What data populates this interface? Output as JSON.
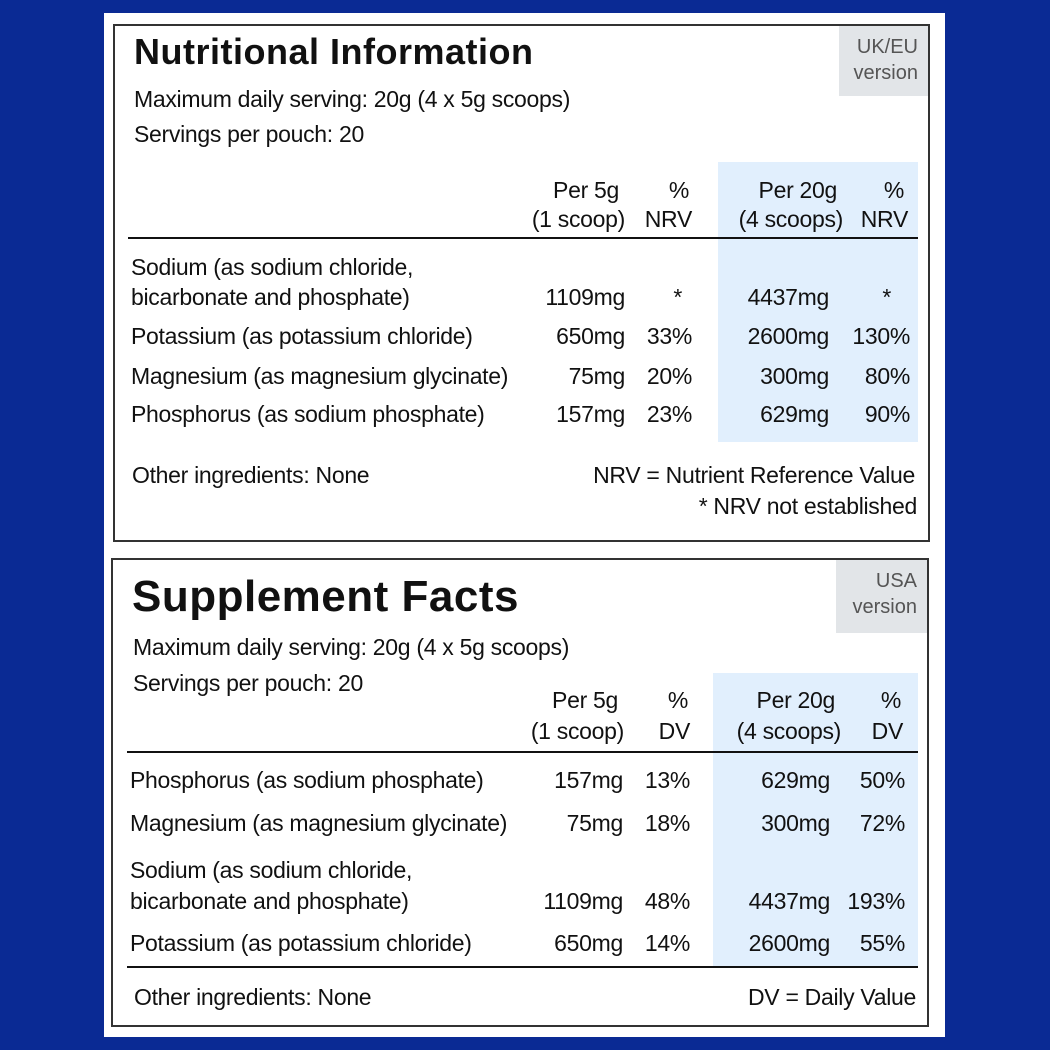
{
  "uk": {
    "title": "Nutritional Information",
    "badge_line1": "UK/EU",
    "badge_line2": "version",
    "max_serving": "Maximum daily serving: 20g (4 x 5g scoops)",
    "servings": "Servings per pouch: 20",
    "headers": {
      "c1a": "Per 5g",
      "c1b": "(1 scoop)",
      "c2a": "%",
      "c2b": "NRV",
      "c3a": "Per 20g",
      "c3b": "(4 scoops)",
      "c4a": "%",
      "c4b": "NRV"
    },
    "rows": [
      {
        "name1": "Sodium (as sodium chloride,",
        "name2": "bicarbonate and phosphate)",
        "v1": "1109mg",
        "p1": "*",
        "v2": "4437mg",
        "p2": "*"
      },
      {
        "name1": "Potassium (as potassium chloride)",
        "v1": "650mg",
        "p1": "33%",
        "v2": "2600mg",
        "p2": "130%"
      },
      {
        "name1": "Magnesium (as magnesium glycinate)",
        "v1": "75mg",
        "p1": "20%",
        "v2": "300mg",
        "p2": "80%"
      },
      {
        "name1": "Phosphorus (as sodium phosphate)",
        "v1": "157mg",
        "p1": "23%",
        "v2": "629mg",
        "p2": "90%"
      }
    ],
    "other": "Other ingredients: None",
    "note1": "NRV = Nutrient Reference Value",
    "note2": "* NRV not established"
  },
  "us": {
    "title": "Supplement Facts",
    "badge_line1": "USA",
    "badge_line2": "version",
    "max_serving": "Maximum daily serving: 20g (4 x 5g scoops)",
    "servings": "Servings per pouch: 20",
    "headers": {
      "c1a": "Per 5g",
      "c1b": "(1 scoop)",
      "c2a": "%",
      "c2b": "DV",
      "c3a": "Per 20g",
      "c3b": "(4 scoops)",
      "c4a": "%",
      "c4b": "DV"
    },
    "rows": [
      {
        "name1": "Phosphorus (as sodium phosphate)",
        "v1": "157mg",
        "p1": "13%",
        "v2": "629mg",
        "p2": "50%"
      },
      {
        "name1": "Magnesium (as magnesium glycinate)",
        "v1": "75mg",
        "p1": "18%",
        "v2": "300mg",
        "p2": "72%"
      },
      {
        "name1": "Sodium (as sodium chloride,",
        "name2": "bicarbonate and phosphate)",
        "v1": "1109mg",
        "p1": "48%",
        "v2": "4437mg",
        "p2": "193%"
      },
      {
        "name1": "Potassium (as potassium chloride)",
        "v1": "650mg",
        "p1": "14%",
        "v2": "2600mg",
        "p2": "55%"
      }
    ],
    "other": "Other ingredients: None",
    "note1": "DV = Daily Value"
  },
  "colors": {
    "background": "#0a2a94",
    "highlight": "#e1effd",
    "badge": "#e2e5e8"
  }
}
